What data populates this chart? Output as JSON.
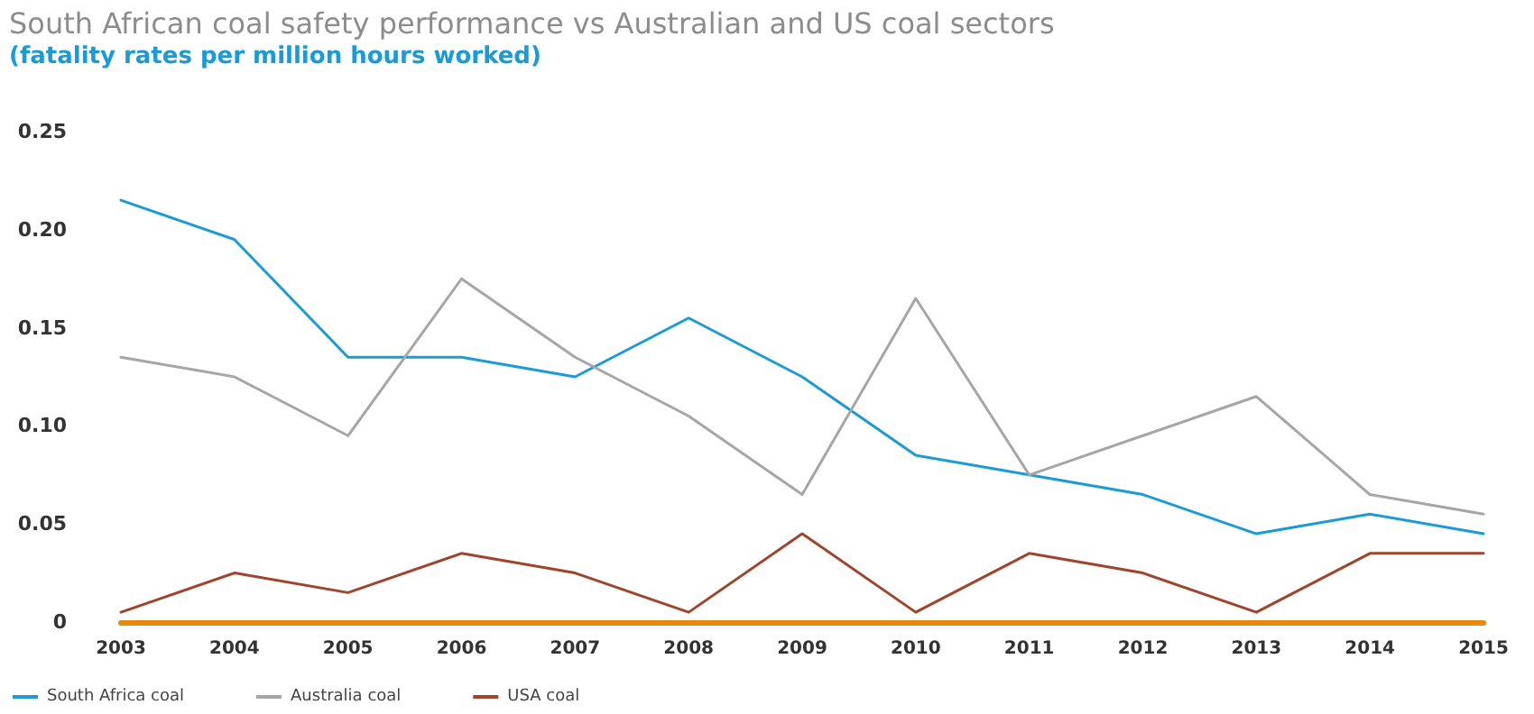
{
  "chart_data": {
    "type": "line",
    "title": "South African coal safety performance vs Australian and US coal sectors",
    "subtitle": "(fatality rates per million hours worked)",
    "categories": [
      "2003",
      "2004",
      "2005",
      "2006",
      "2007",
      "2008",
      "2009",
      "2010",
      "2011",
      "2012",
      "2013",
      "2014",
      "2015"
    ],
    "series": [
      {
        "name": "South Africa coal",
        "color": "#1a9ad6",
        "values": [
          0.215,
          0.195,
          0.135,
          0.135,
          0.125,
          0.155,
          0.125,
          0.085,
          0.075,
          0.065,
          0.045,
          0.055,
          0.045
        ]
      },
      {
        "name": "Australia coal",
        "color": "#a6a6a6",
        "values": [
          0.135,
          0.125,
          0.095,
          0.175,
          0.135,
          0.105,
          0.065,
          0.165,
          0.075,
          0.095,
          0.115,
          0.065,
          0.055
        ]
      },
      {
        "name": "USA coal",
        "color": "#a0442c",
        "values": [
          0.005,
          0.025,
          0.015,
          0.035,
          0.025,
          0.005,
          0.045,
          0.005,
          0.035,
          0.025,
          0.005,
          0.035,
          0.035
        ]
      }
    ],
    "ylim": [
      0,
      0.25
    ],
    "yticks": [
      0,
      0.05,
      {
        "value": 0.1,
        "label": "0.10"
      },
      0.15,
      {
        "value": 0.2,
        "label": "0.20"
      },
      0.25
    ],
    "grid": false,
    "legend": "bottom left",
    "marker": "none",
    "line_style": "solid"
  }
}
